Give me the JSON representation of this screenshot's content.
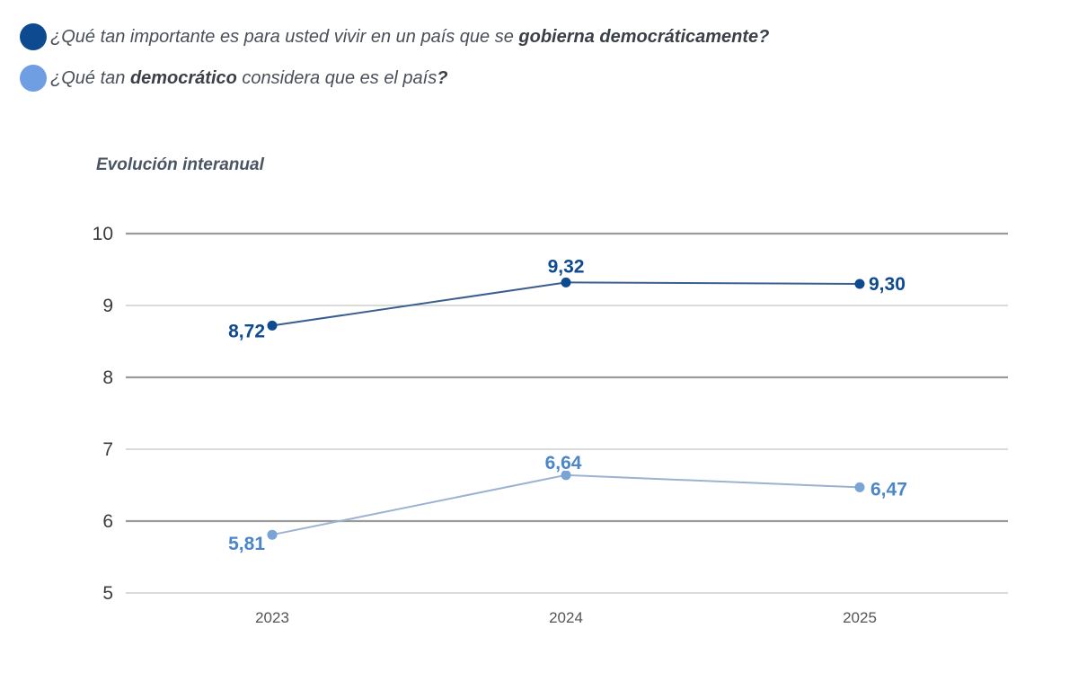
{
  "legend": {
    "items": [
      {
        "color": "#0d4a8f",
        "text_pre": "¿Qué tan importante es para usted vivir en un país que se ",
        "text_bold": "gobierna democráticamente?",
        "text_post": ""
      },
      {
        "color": "#6f9fe2",
        "text_pre": "¿Qué tan ",
        "text_bold": "democrático",
        "text_post": " considera que es el país",
        "text_post_bold": "?"
      }
    ]
  },
  "chart_data": {
    "type": "line",
    "title": "",
    "subtitle": "Evolución interanual",
    "xlabel": "",
    "ylabel": "",
    "categories": [
      "2023",
      "2024",
      "2025"
    ],
    "ylim": [
      5,
      10
    ],
    "yticks": [
      "5",
      "6",
      "7",
      "8",
      "9",
      "10"
    ],
    "grid": true,
    "series": [
      {
        "values": [
          8.72,
          9.32,
          9.3
        ],
        "labels": [
          "8,72",
          "9,32",
          "9,30"
        ],
        "line_color": "#3a5f8f",
        "marker_color": "#0d4a8f",
        "label_color": "#0d4a8f"
      },
      {
        "values": [
          5.81,
          6.64,
          6.47
        ],
        "labels": [
          "5,81",
          "6,64",
          "6,47"
        ],
        "line_color": "#9cb3d0",
        "marker_color": "#7aa3d6",
        "label_color": "#4b86c8"
      }
    ]
  }
}
